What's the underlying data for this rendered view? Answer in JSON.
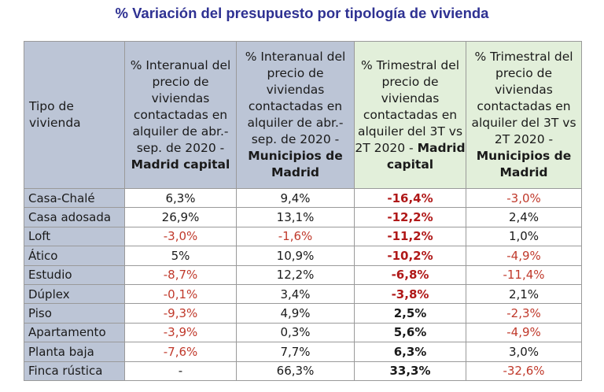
{
  "title": "% Variación del presupuesto por tipología de vivienda",
  "headers": [
    {
      "text": "Tipo de vivienda",
      "bold": ""
    },
    {
      "text": "% Interanual del precio de viviendas contactadas en alquiler de abr.-sep. de 2020 -",
      "bold": "Madrid capital"
    },
    {
      "text": "% Interanual del precio de viviendas contactadas en alquiler de abr.-sep. de 2020 -",
      "bold": "Municipios de Madrid"
    },
    {
      "text": "% Trimestral del precio de viviendas contactadas en alquiler del 3T vs 2T 2020 -",
      "bold": "Madrid capital"
    },
    {
      "text": "% Trimestral del precio de viviendas contactadas en alquiler del 3T vs 2T 2020 -",
      "bold": "Municipios de Madrid"
    }
  ],
  "rows": [
    {
      "tipo": "Casa-Chalé",
      "v": [
        "6,3%",
        "9,4%",
        "-16,4%",
        "-3,0%"
      ]
    },
    {
      "tipo": "Casa adosada",
      "v": [
        "26,9%",
        "13,1%",
        "-12,2%",
        "2,4%"
      ]
    },
    {
      "tipo": "Loft",
      "v": [
        "-3,0%",
        "-1,6%",
        "-11,2%",
        "1,0%"
      ]
    },
    {
      "tipo": "Ático",
      "v": [
        "5%",
        "10,9%",
        "-10,2%",
        "-4,9%"
      ]
    },
    {
      "tipo": "Estudio",
      "v": [
        "-8,7%",
        "12,2%",
        "-6,8%",
        "-11,4%"
      ]
    },
    {
      "tipo": "Dúplex",
      "v": [
        "-0,1%",
        "3,4%",
        "-3,8%",
        "2,1%"
      ]
    },
    {
      "tipo": "Piso",
      "v": [
        "-9,3%",
        "4,9%",
        "2,5%",
        "-2,3%"
      ]
    },
    {
      "tipo": "Apartamento",
      "v": [
        "-3,9%",
        "0,3%",
        "5,6%",
        "-4,9%"
      ]
    },
    {
      "tipo": "Planta baja",
      "v": [
        "-7,6%",
        "7,7%",
        "6,3%",
        "3,0%"
      ]
    },
    {
      "tipo": "Finca rústica",
      "v": [
        "-",
        "66,3%",
        "33,3%",
        "-32,6%"
      ]
    }
  ],
  "colors": {
    "title": "#2e3192",
    "negative": "#c0392b",
    "header_grey": "#bcc5d6",
    "header_green": "#e2efda"
  }
}
